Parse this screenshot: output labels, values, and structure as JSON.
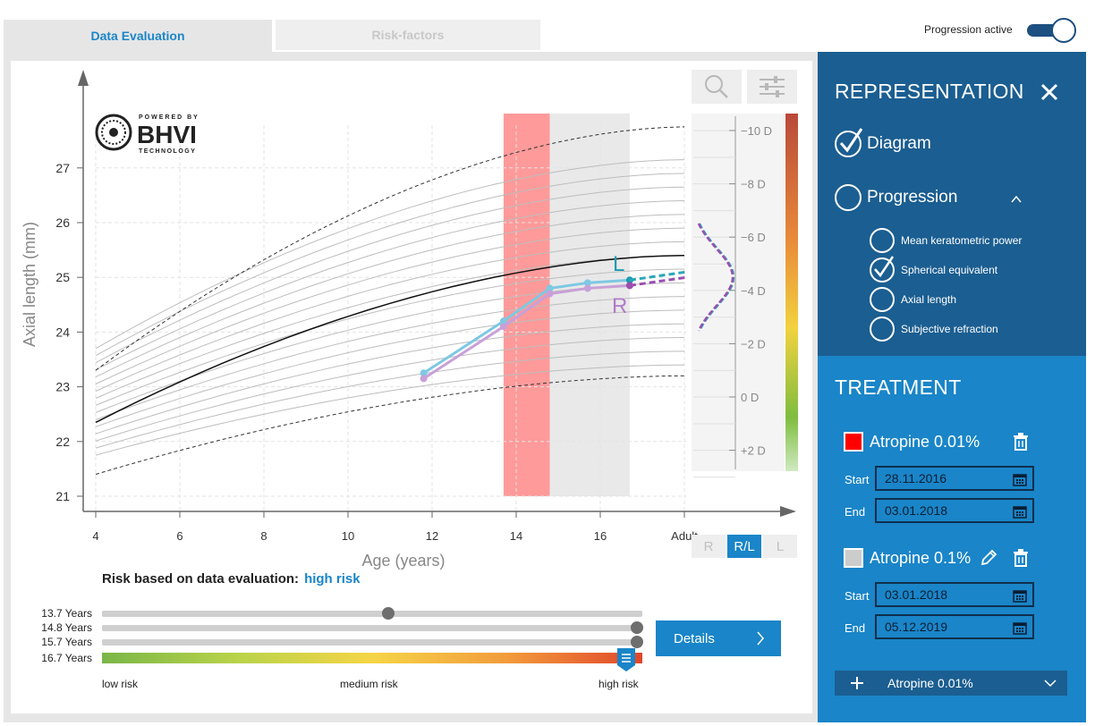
{
  "tabs": {
    "data_evaluation": "Data Evaluation",
    "risk_factors": "Risk-factors"
  },
  "progression_toggle": {
    "label": "Progression active",
    "on": true
  },
  "logo": {
    "powered_by": "POWERED BY",
    "name": "BHVI",
    "sub": "TECHNOLOGY"
  },
  "chart_data": {
    "type": "line",
    "ylabel": "Axial length (mm)",
    "xlabel": "Age (years)",
    "x_ticks": [
      "4",
      "6",
      "8",
      "10",
      "12",
      "14",
      "16",
      "Adult"
    ],
    "y_ticks": [
      "21",
      "22",
      "23",
      "24",
      "25",
      "26",
      "27"
    ],
    "xlim": [
      4,
      18
    ],
    "ylim": [
      20.75,
      27.9
    ],
    "series": [
      {
        "name": "L",
        "color": "#7ec8e3",
        "x": [
          11.8,
          13.7,
          14.8,
          15.7,
          16.7
        ],
        "y": [
          23.25,
          24.2,
          24.8,
          24.9,
          24.95
        ]
      },
      {
        "name": "R",
        "color": "#c8a0d8",
        "x": [
          11.8,
          13.7,
          14.8,
          15.7,
          16.7
        ],
        "y": [
          23.15,
          24.1,
          24.7,
          24.8,
          24.85
        ]
      }
    ],
    "treatment_bands": [
      {
        "x_start": 13.7,
        "x_end": 14.8,
        "color": "#ff9a9a"
      },
      {
        "x_start": 14.8,
        "x_end": 16.7,
        "color": "#e9e9e9"
      }
    ],
    "refraction_scale": [
      "-10 D",
      "-8 D",
      "-6 D",
      "-4 D",
      "-2 D",
      "0 D",
      "+2 D"
    ]
  },
  "rl_buttons": [
    "R",
    "R/L",
    "L"
  ],
  "rl_active": "R/L",
  "risk": {
    "title": "Risk based on data evaluation:",
    "value": "high risk",
    "rows": [
      {
        "label": "13.7 Years",
        "level": 0.53
      },
      {
        "label": "14.8 Years",
        "level": 0.99
      },
      {
        "label": "15.7 Years",
        "level": 0.99
      },
      {
        "label": "16.7 Years",
        "level": 0.97
      }
    ],
    "scale_low": "low risk",
    "scale_medium": "medium risk",
    "scale_high": "high risk"
  },
  "details_button": "Details",
  "representation": {
    "title": "REPRESENTATION",
    "diagram": "Diagram",
    "progression": "Progression",
    "sub_options": [
      {
        "label": "Mean keratometric power",
        "checked": false
      },
      {
        "label": "Spherical equivalent",
        "checked": true
      },
      {
        "label": "Axial length",
        "checked": false
      },
      {
        "label": "Subjective refraction",
        "checked": false
      }
    ]
  },
  "treatment": {
    "title": "TREATMENT",
    "items": [
      {
        "name": "Atropine 0.01%",
        "color": "#ff0000",
        "start": "28.11.2016",
        "end": "03.01.2018"
      },
      {
        "name": "Atropine 0.1%",
        "color": "#cccccc",
        "start": "03.01.2018",
        "end": "05.12.2019"
      }
    ],
    "start_label": "Start",
    "end_label": "End",
    "add_label": "Atropine 0.01%"
  }
}
